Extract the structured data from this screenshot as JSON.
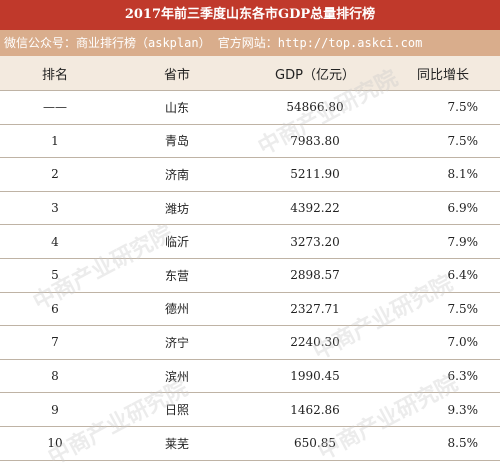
{
  "title": "2017年前三季度山东各市GDP总量排行榜",
  "subtitle": "微信公众号：商业排行榜（askplan）  官方网站：http://top.askci.com",
  "headers": {
    "rank": "排名",
    "city": "省市",
    "gdp": "GDP（亿元）",
    "growth": "同比增长"
  },
  "rows": [
    {
      "rank": "——",
      "city": "山东",
      "gdp": "54866.80",
      "growth": "7.5%"
    },
    {
      "rank": "1",
      "city": "青岛",
      "gdp": "7983.80",
      "growth": "7.5%"
    },
    {
      "rank": "2",
      "city": "济南",
      "gdp": "5211.90",
      "growth": "8.1%"
    },
    {
      "rank": "3",
      "city": "潍坊",
      "gdp": "4392.22",
      "growth": "6.9%"
    },
    {
      "rank": "4",
      "city": "临沂",
      "gdp": "3273.20",
      "growth": "7.9%"
    },
    {
      "rank": "5",
      "city": "东营",
      "gdp": "2898.57",
      "growth": "6.4%"
    },
    {
      "rank": "6",
      "city": "德州",
      "gdp": "2327.71",
      "growth": "7.5%"
    },
    {
      "rank": "7",
      "city": "济宁",
      "gdp": "2240.30",
      "growth": "7.0%"
    },
    {
      "rank": "8",
      "city": "滨州",
      "gdp": "1990.45",
      "growth": "6.3%"
    },
    {
      "rank": "9",
      "city": "日照",
      "gdp": "1462.86",
      "growth": "9.3%"
    },
    {
      "rank": "10",
      "city": "莱芜",
      "gdp": "650.85",
      "growth": "8.5%"
    }
  ],
  "watermark": "中商产业研究院"
}
